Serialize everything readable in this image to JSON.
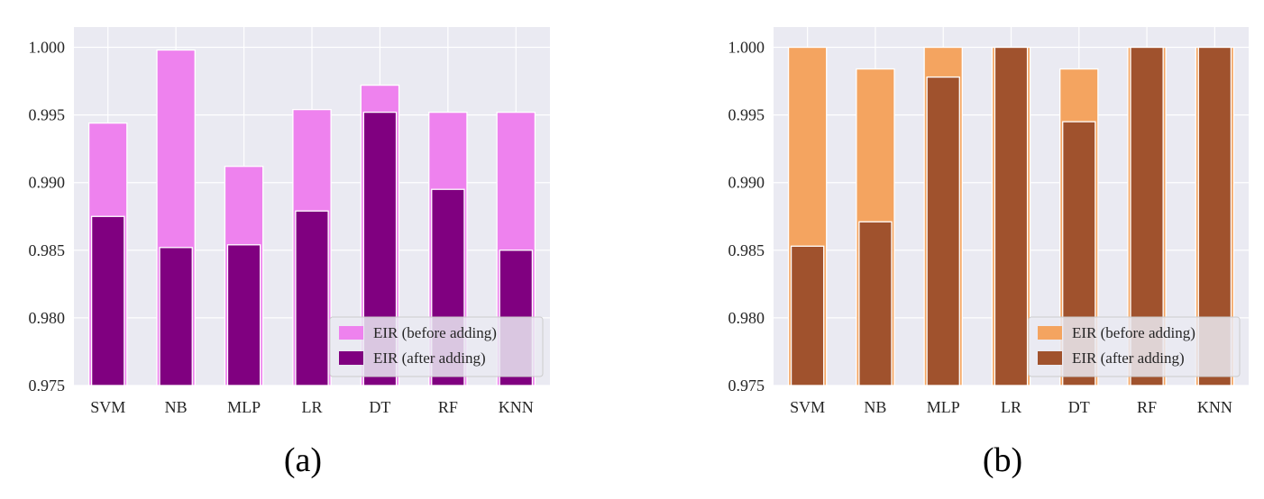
{
  "chart_data": [
    {
      "type": "bar",
      "caption": "(a)",
      "categories": [
        "SVM",
        "NB",
        "MLP",
        "LR",
        "DT",
        "RF",
        "KNN"
      ],
      "series": [
        {
          "name": "EIR (before adding)",
          "values": [
            0.9944,
            0.9998,
            0.9912,
            0.9954,
            0.9972,
            0.9952,
            0.9952
          ],
          "color": "#ee82ee"
        },
        {
          "name": "EIR (after adding)",
          "values": [
            0.9875,
            0.9852,
            0.9854,
            0.9879,
            0.9952,
            0.9895,
            0.985
          ],
          "color": "#800080"
        }
      ],
      "ylim": [
        0.975,
        1.0015
      ],
      "yticks": [
        "0.975",
        "0.980",
        "0.985",
        "0.990",
        "0.995",
        "1.000"
      ],
      "xlabel": "",
      "ylabel": "",
      "title": "",
      "grid": true,
      "legend_position": "bottom-right"
    },
    {
      "type": "bar",
      "caption": "(b)",
      "categories": [
        "SVM",
        "NB",
        "MLP",
        "LR",
        "DT",
        "RF",
        "KNN"
      ],
      "series": [
        {
          "name": "EIR (before adding)",
          "values": [
            1.0,
            0.9984,
            1.0,
            1.0,
            0.9984,
            1.0,
            1.0
          ],
          "color": "#f4a460"
        },
        {
          "name": "EIR (after adding)",
          "values": [
            0.9853,
            0.9871,
            0.9978,
            1.0,
            0.9945,
            1.0,
            1.0
          ],
          "color": "#a0522d"
        }
      ],
      "ylim": [
        0.975,
        1.0015
      ],
      "yticks": [
        "0.975",
        "0.980",
        "0.985",
        "0.990",
        "0.995",
        "1.000"
      ],
      "xlabel": "",
      "ylabel": "",
      "title": "",
      "grid": true,
      "legend_position": "bottom-right"
    }
  ],
  "style": {
    "plot_background": "#eaeaf2",
    "grid_color": "#ffffff",
    "text_color": "#262626"
  }
}
